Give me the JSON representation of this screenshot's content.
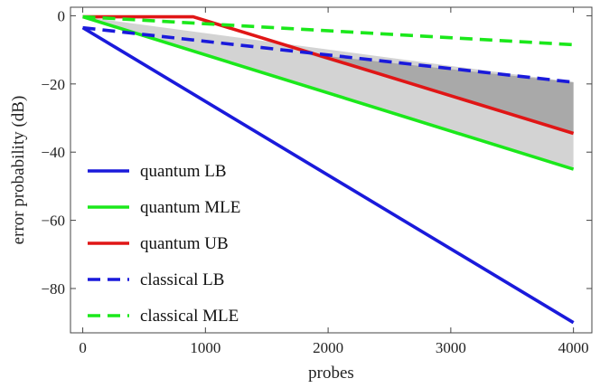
{
  "chart_data": {
    "type": "line",
    "title": "",
    "xlabel": "probes",
    "ylabel": "error probability (dB)",
    "xlim": [
      -100,
      4150
    ],
    "ylim": [
      -93,
      2.5
    ],
    "xticks": [
      0,
      1000,
      2000,
      3000,
      4000
    ],
    "yticks": [
      0,
      -20,
      -40,
      -60,
      -80
    ],
    "xtick_labels": [
      "0",
      "1000",
      "2000",
      "3000",
      "4000"
    ],
    "ytick_labels": [
      "0",
      "−20",
      "−40",
      "−60",
      "−80"
    ],
    "grid": false,
    "legend_position": "bottom-left",
    "series": [
      {
        "name": "quantum LB",
        "color": "#1a1adb",
        "dash": false,
        "x": [
          0,
          4000
        ],
        "y": [
          -3.5,
          -90
        ]
      },
      {
        "name": "quantum MLE",
        "color": "#1be81b",
        "dash": false,
        "x": [
          0,
          4000
        ],
        "y": [
          -0.3,
          -45
        ]
      },
      {
        "name": "quantum UB",
        "color": "#e01616",
        "dash": false,
        "x": [
          0,
          900,
          4000
        ],
        "y": [
          -0.3,
          -0.3,
          -34.5
        ]
      },
      {
        "name": "classical LB",
        "color": "#1a1adb",
        "dash": true,
        "x": [
          0,
          4000
        ],
        "y": [
          -3.5,
          -19.5
        ]
      },
      {
        "name": "classical MLE",
        "color": "#1be81b",
        "dash": true,
        "x": [
          0,
          4000
        ],
        "y": [
          -0.3,
          -8.5
        ]
      }
    ],
    "shaded_regions": [
      {
        "color": "#d3d3d3",
        "x": [
          0,
          4000,
          4000,
          0
        ],
        "y": [
          -0.3,
          -19.5,
          -45,
          -0.3
        ]
      },
      {
        "color": "#a9a9a9",
        "x": [
          1830,
          4000,
          4000
        ],
        "y": [
          -11.2,
          -19.5,
          -34.5
        ]
      }
    ]
  }
}
